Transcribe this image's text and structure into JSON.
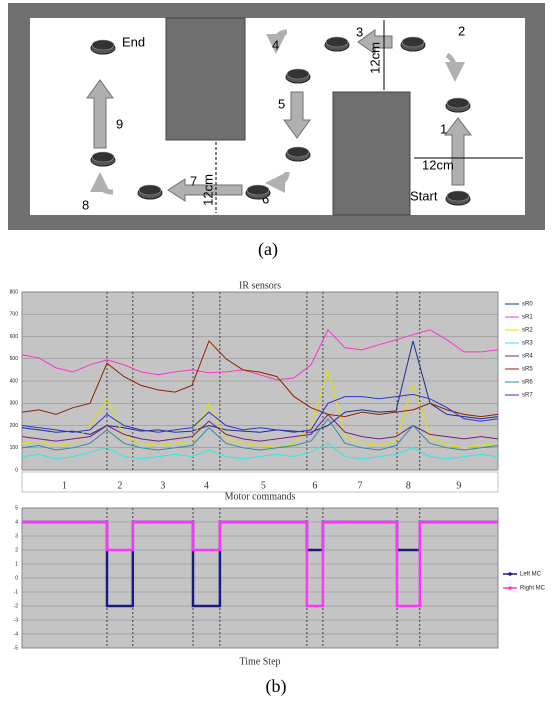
{
  "diagram": {
    "steps": [
      "1",
      "2",
      "3",
      "4",
      "5",
      "6",
      "7",
      "8",
      "9"
    ],
    "start": "Start",
    "end": "End",
    "distances": [
      "12cm",
      "12cm",
      "12cm"
    ]
  },
  "caption_a": "(a)",
  "chart_data": [
    {
      "type": "line",
      "title": "IR sensors",
      "x": [
        0,
        50,
        100,
        150,
        200,
        250,
        300,
        350,
        400,
        450,
        500,
        550,
        600,
        650,
        700,
        750,
        800,
        850,
        900,
        950,
        1000,
        1050,
        1100,
        1150,
        1200,
        1250,
        1300,
        1350,
        1400
      ],
      "xlim": [
        0,
        1400
      ],
      "ylim": [
        0,
        800
      ],
      "yticks": [
        0,
        100,
        200,
        300,
        400,
        500,
        600,
        700,
        800
      ],
      "grid": true,
      "dividers": [
        250,
        326,
        503,
        582,
        838,
        885,
        1103,
        1170
      ],
      "segment_labels": [
        "1",
        "2",
        "3",
        "4",
        "5",
        "6",
        "7",
        "8",
        "9"
      ],
      "series": [
        {
          "name": "sR0",
          "color": "#1f2f8f",
          "values": [
            190,
            180,
            170,
            175,
            160,
            200,
            190,
            175,
            180,
            170,
            175,
            200,
            180,
            175,
            170,
            180,
            175,
            170,
            200,
            260,
            270,
            260,
            265,
            580,
            300,
            250,
            240,
            230,
            240
          ]
        },
        {
          "name": "sR1",
          "color": "#ff33cc",
          "values": [
            518,
            504,
            459,
            441,
            473,
            495,
            473,
            441,
            428,
            441,
            450,
            437,
            441,
            450,
            428,
            405,
            414,
            473,
            630,
            549,
            540,
            563,
            585,
            608,
            630,
            585,
            531,
            531,
            540
          ]
        },
        {
          "name": "sR2",
          "color": "#e6e000",
          "values": [
            120,
            130,
            110,
            120,
            200,
            320,
            150,
            120,
            110,
            120,
            130,
            300,
            140,
            120,
            110,
            100,
            120,
            200,
            450,
            150,
            120,
            110,
            130,
            380,
            150,
            110,
            100,
            110,
            120
          ]
        },
        {
          "name": "sR3",
          "color": "#33e6e6",
          "values": [
            60,
            70,
            50,
            60,
            80,
            100,
            60,
            50,
            60,
            70,
            60,
            90,
            60,
            50,
            60,
            70,
            60,
            80,
            120,
            60,
            50,
            60,
            70,
            100,
            60,
            50,
            60,
            70,
            60
          ]
        },
        {
          "name": "sR4",
          "color": "#7a1f7a",
          "values": [
            150,
            140,
            130,
            140,
            150,
            200,
            160,
            140,
            130,
            140,
            150,
            220,
            160,
            140,
            130,
            140,
            150,
            160,
            250,
            170,
            150,
            140,
            150,
            200,
            160,
            150,
            140,
            150,
            140
          ]
        },
        {
          "name": "sR5",
          "color": "#8b2500",
          "values": [
            260,
            270,
            250,
            280,
            300,
            480,
            420,
            380,
            360,
            350,
            380,
            580,
            500,
            450,
            440,
            420,
            330,
            280,
            250,
            240,
            260,
            250,
            260,
            270,
            300,
            270,
            250,
            240,
            250
          ]
        },
        {
          "name": "sR6",
          "color": "#3a8a9a",
          "values": [
            100,
            110,
            90,
            100,
            120,
            180,
            120,
            100,
            90,
            100,
            110,
            190,
            120,
            100,
            90,
            100,
            110,
            130,
            230,
            120,
            100,
            90,
            110,
            200,
            120,
            100,
            90,
            100,
            110
          ]
        },
        {
          "name": "sR7",
          "color": "#3333cc",
          "values": [
            200,
            190,
            180,
            170,
            180,
            250,
            200,
            180,
            170,
            180,
            190,
            260,
            200,
            180,
            190,
            180,
            170,
            180,
            300,
            330,
            330,
            320,
            330,
            340,
            320,
            280,
            230,
            220,
            230
          ]
        }
      ]
    },
    {
      "type": "line",
      "title": "Motor commands",
      "x_label": "Time Step",
      "x": [
        0,
        250,
        250,
        326,
        326,
        503,
        503,
        582,
        582,
        838,
        838,
        885,
        885,
        1103,
        1103,
        1170,
        1170,
        1400
      ],
      "xlim": [
        0,
        1400
      ],
      "ylim": [
        -5,
        5
      ],
      "yticks": [
        -5,
        -4,
        -3,
        -2,
        -1,
        0,
        1,
        2,
        3,
        4,
        5
      ],
      "grid": true,
      "dividers": [
        250,
        326,
        503,
        582,
        838,
        885,
        1103,
        1170
      ],
      "series": [
        {
          "name": "Left MC",
          "color": "#1a1a80",
          "values": [
            4,
            4,
            -2,
            -2,
            4,
            4,
            -2,
            -2,
            4,
            4,
            2,
            2,
            4,
            4,
            2,
            2,
            4,
            4
          ]
        },
        {
          "name": "Right MC",
          "color": "#ff33ff",
          "values": [
            4,
            4,
            2,
            2,
            4,
            4,
            2,
            2,
            4,
            4,
            -2,
            -2,
            4,
            4,
            -2,
            -2,
            4,
            4
          ]
        }
      ]
    }
  ],
  "caption_b": "(b)"
}
